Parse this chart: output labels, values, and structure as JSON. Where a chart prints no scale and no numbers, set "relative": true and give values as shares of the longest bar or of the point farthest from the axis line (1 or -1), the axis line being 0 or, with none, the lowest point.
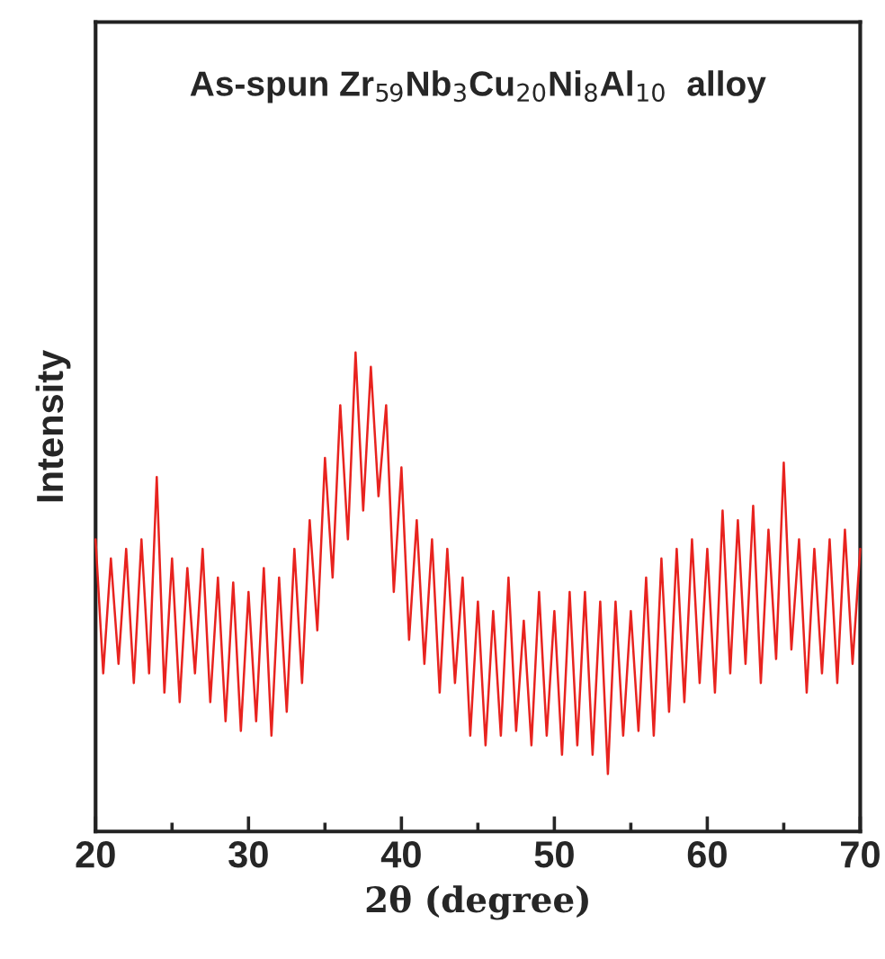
{
  "chart_data": {
    "type": "line",
    "title": "As-spun Zr$_{59}$Nb$_{3}$Cu$_{20}$Ni$_{8}$Al$_{10}$  alloy",
    "xlabel": "2θ (degree)",
    "ylabel": "Intensity",
    "relative": true,
    "xlim": [
      20,
      70
    ],
    "xticks": [
      20,
      30,
      40,
      50,
      60,
      70
    ],
    "grid": false,
    "legend": false,
    "marker": "none",
    "line_style": "solid",
    "series": [
      {
        "color": "#e8231f",
        "x": [
          20,
          20.5,
          21,
          21.5,
          22,
          22.5,
          23,
          23.5,
          24,
          24.5,
          25,
          25.5,
          26,
          26.5,
          27,
          27.5,
          28,
          28.5,
          29,
          29.5,
          30,
          30.5,
          31,
          31.5,
          32,
          32.5,
          33,
          33.5,
          34,
          34.5,
          35,
          35.5,
          36,
          36.5,
          37,
          37.5,
          38,
          38.5,
          39,
          39.5,
          40,
          40.5,
          41,
          41.5,
          42,
          42.5,
          43,
          43.5,
          44,
          44.5,
          45,
          45.5,
          46,
          46.5,
          47,
          47.5,
          48,
          48.5,
          49,
          49.5,
          50,
          50.5,
          51,
          51.5,
          52,
          52.5,
          53,
          53.5,
          54,
          54.5,
          55,
          55.5,
          56,
          56.5,
          57,
          57.5,
          58,
          58.5,
          59,
          59.5,
          60,
          60.5,
          61,
          61.5,
          62,
          62.5,
          63,
          63.5,
          64,
          64.5,
          65,
          65.5,
          66,
          66.5,
          67,
          67.5,
          68,
          68.5,
          69,
          69.5,
          70
        ],
        "values": [
          0.61,
          0.33,
          0.57,
          0.35,
          0.59,
          0.31,
          0.61,
          0.33,
          0.74,
          0.29,
          0.57,
          0.27,
          0.55,
          0.33,
          0.59,
          0.27,
          0.53,
          0.23,
          0.52,
          0.21,
          0.5,
          0.23,
          0.55,
          0.2,
          0.53,
          0.25,
          0.59,
          0.31,
          0.65,
          0.42,
          0.78,
          0.53,
          0.89,
          0.61,
          1.0,
          0.67,
          0.97,
          0.7,
          0.89,
          0.5,
          0.76,
          0.4,
          0.65,
          0.35,
          0.61,
          0.29,
          0.59,
          0.31,
          0.53,
          0.2,
          0.48,
          0.18,
          0.46,
          0.2,
          0.53,
          0.21,
          0.44,
          0.18,
          0.5,
          0.2,
          0.46,
          0.16,
          0.5,
          0.18,
          0.5,
          0.16,
          0.48,
          0.12,
          0.48,
          0.2,
          0.46,
          0.21,
          0.53,
          0.2,
          0.57,
          0.25,
          0.59,
          0.27,
          0.61,
          0.31,
          0.59,
          0.29,
          0.67,
          0.33,
          0.65,
          0.35,
          0.68,
          0.31,
          0.63,
          0.36,
          0.77,
          0.38,
          0.61,
          0.29,
          0.59,
          0.33,
          0.61,
          0.31,
          0.63,
          0.35,
          0.59
        ]
      }
    ]
  }
}
